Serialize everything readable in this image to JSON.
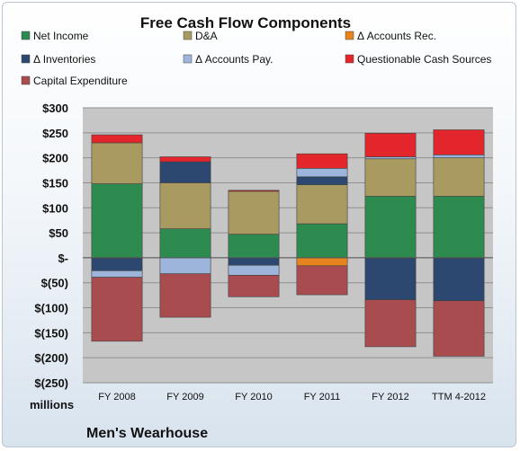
{
  "chart_data": {
    "type": "bar",
    "stacked": true,
    "title": "Free Cash Flow Components",
    "units_label": "millions",
    "company": "Men's Wearhouse",
    "categories": [
      "FY 2008",
      "FY 2009",
      "FY 2010",
      "FY 2011",
      "FY 2012",
      "TTM 4-2012"
    ],
    "ylim": [
      -250,
      300
    ],
    "yticks": [
      300,
      250,
      200,
      150,
      100,
      50,
      0,
      -50,
      -100,
      -150,
      -200,
      -250
    ],
    "ytick_labels": [
      "$300",
      "$250",
      "$200",
      "$150",
      "$100",
      "$50",
      "$-",
      "$(50)",
      "$(100)",
      "$(150)",
      "$(200)",
      "$(250)"
    ],
    "legend_placement": "top",
    "series": [
      {
        "name": "Net Income",
        "color": "#2e8b50",
        "values": [
          148,
          58,
          47,
          68,
          123,
          123
        ]
      },
      {
        "name": "D&A",
        "color": "#a89a61",
        "values": [
          82,
          92,
          86,
          78,
          75,
          77
        ]
      },
      {
        "name": "Δ Accounts Rec.",
        "color": "#e5831e",
        "values": [
          -1,
          0,
          0,
          -16,
          -1,
          -1
        ]
      },
      {
        "name": "Δ Inventories",
        "color": "#2c4770",
        "values": [
          -25,
          42,
          -15,
          16,
          -83,
          -85
        ]
      },
      {
        "name": "Δ Accounts Pay.",
        "color": "#9db5da",
        "values": [
          -13,
          -32,
          -20,
          17,
          4,
          6
        ]
      },
      {
        "name": "Questionable Cash Sources",
        "color": "#e3262b",
        "values": [
          16,
          10,
          2,
          29,
          47,
          50
        ]
      },
      {
        "name": "Capital Expenditure",
        "color": "#a84c4f",
        "values": [
          -128,
          -87,
          -43,
          -58,
          -94,
          -111
        ]
      }
    ]
  }
}
